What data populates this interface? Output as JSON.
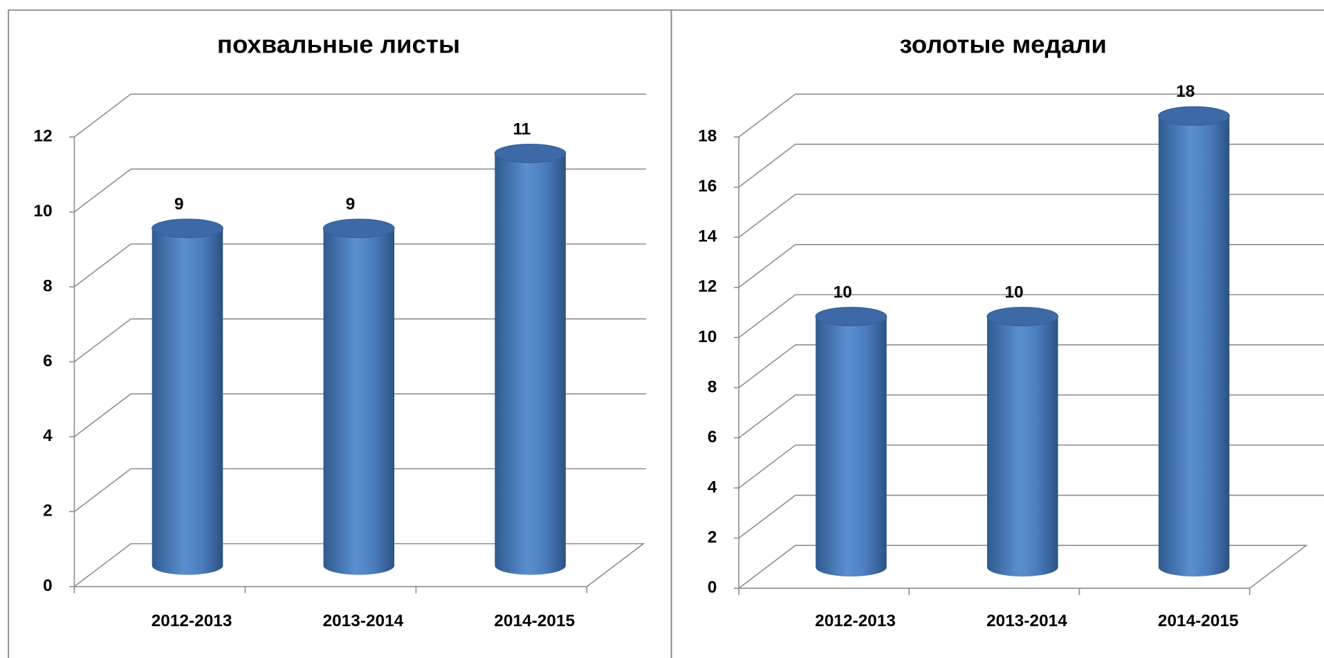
{
  "chart_data": [
    {
      "type": "bar3d",
      "title": "похвальные листы",
      "categories": [
        "2012-2013",
        "2013-2014",
        "2014-2015"
      ],
      "values": [
        9,
        9,
        11
      ],
      "color": "#4f81bd",
      "ylim": [
        0,
        12
      ],
      "yticks": [
        0,
        2,
        4,
        6,
        8,
        10,
        12
      ],
      "grid": true
    },
    {
      "type": "bar3d",
      "title": "золотые медали",
      "categories": [
        "2012-2013",
        "2013-2014",
        "2014-2015"
      ],
      "values": [
        10,
        10,
        18
      ],
      "color": "#4f81bd",
      "ylim": [
        0,
        18
      ],
      "yticks": [
        0,
        2,
        4,
        6,
        8,
        10,
        12,
        14,
        16,
        18
      ],
      "grid": true
    }
  ]
}
